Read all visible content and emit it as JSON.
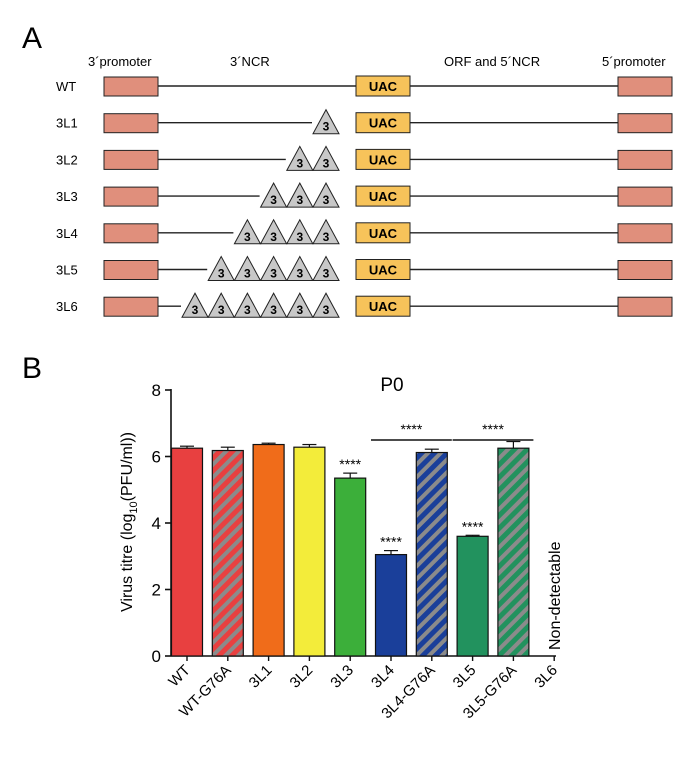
{
  "panel_a": {
    "label": "A",
    "headers": {
      "promoter3": "3´promoter",
      "ncr3": "3´NCR",
      "orf": "ORF and 5´NCR",
      "promoter5": "5´promoter"
    },
    "box_color": "#E08F7C",
    "uac_color": "#F7C35A",
    "triangle_color": "#C8C8C8",
    "uac_label": "UAC",
    "triangle_label": "3",
    "rows": [
      {
        "label": "WT",
        "triangles": 0
      },
      {
        "label": "3L1",
        "triangles": 1
      },
      {
        "label": "3L2",
        "triangles": 2
      },
      {
        "label": "3L3",
        "triangles": 3
      },
      {
        "label": "3L4",
        "triangles": 4
      },
      {
        "label": "3L5",
        "triangles": 5
      },
      {
        "label": "3L6",
        "triangles": 6
      }
    ]
  },
  "chart_data": {
    "panel_label": "B",
    "type": "bar",
    "title": "P0",
    "ylabel_prefix": "Virus titre (log",
    "ylabel_sub": "10",
    "ylabel_suffix": "(PFU/ml))",
    "ylim": [
      0,
      8
    ],
    "yticks": [
      0,
      2,
      4,
      6,
      8
    ],
    "categories": [
      "WT",
      "WT-G76A",
      "3L1",
      "3L2",
      "3L3",
      "3L4",
      "3L4-G76A",
      "3L5",
      "3L5-G76A",
      "3L6"
    ],
    "values": [
      6.25,
      6.18,
      6.36,
      6.28,
      5.35,
      3.05,
      6.12,
      3.6,
      6.25,
      null
    ],
    "errors": [
      0.06,
      0.1,
      0.04,
      0.08,
      0.15,
      0.12,
      0.1,
      0.03,
      0.2,
      null
    ],
    "colors": [
      "#E84040",
      "#E84040",
      "#F06C1A",
      "#F3EC3A",
      "#3CAF3A",
      "#1A3F9A",
      "#1A3F9A",
      "#22925E",
      "#22925E",
      null
    ],
    "hatched": [
      false,
      true,
      false,
      false,
      false,
      false,
      true,
      false,
      true,
      false
    ],
    "star_label": "****",
    "star_over": [
      4,
      5,
      7
    ],
    "comparisons": [
      {
        "from": 5,
        "to": 6,
        "label": "****"
      },
      {
        "from": 7,
        "to": 8,
        "label": "****"
      }
    ],
    "non_detectable_index": 9,
    "non_detectable_text": "Non-detectable"
  }
}
